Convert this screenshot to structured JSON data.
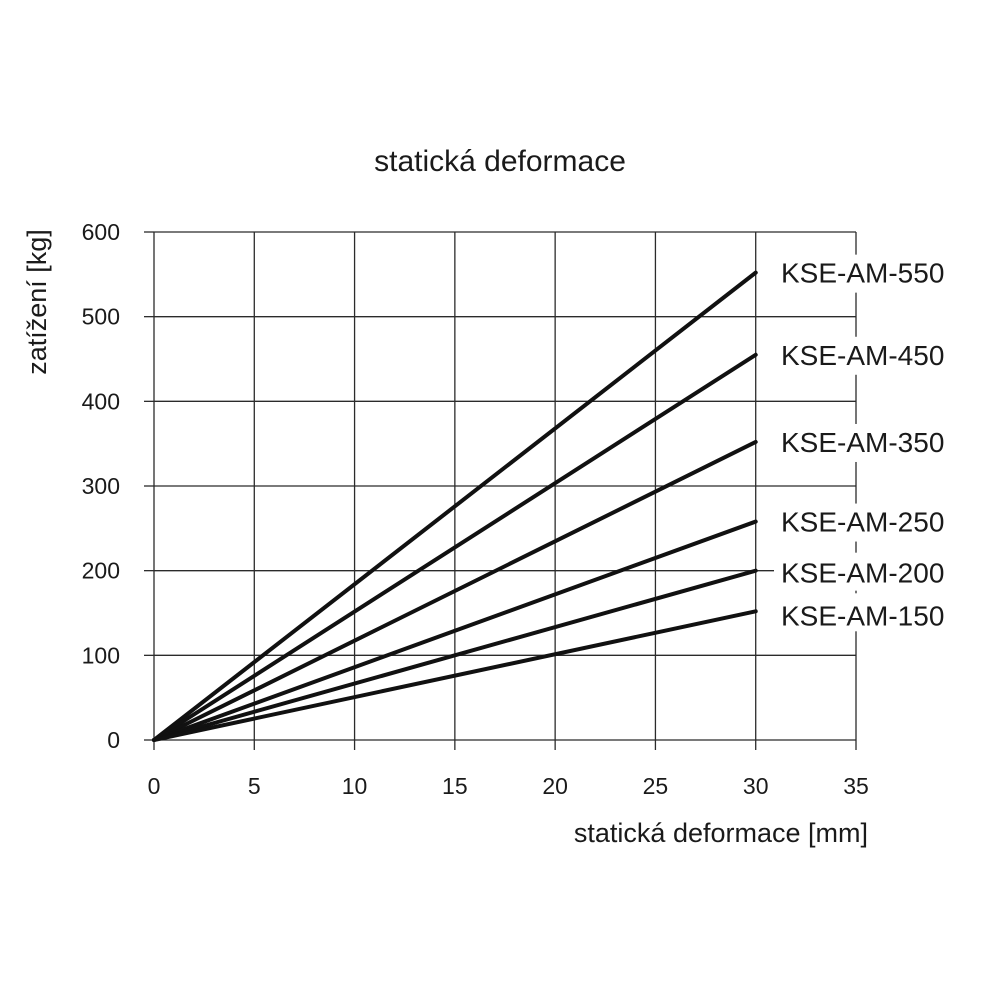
{
  "chart_data": {
    "type": "line",
    "title": "statická deformace",
    "xlabel": "statická deformace [mm]",
    "ylabel": "zatížení [kg]",
    "xlim": [
      0,
      35
    ],
    "ylim": [
      0,
      600
    ],
    "x_ticks": [
      "0",
      "5",
      "10",
      "15",
      "20",
      "25",
      "30",
      "35"
    ],
    "y_ticks": [
      "0",
      "100",
      "200",
      "300",
      "400",
      "500",
      "600"
    ],
    "grid": true,
    "legend": "labels at line ends, right",
    "series": [
      {
        "name": "KSE-AM-550",
        "x": [
          0,
          30
        ],
        "y": [
          0,
          552
        ]
      },
      {
        "name": "KSE-AM-450",
        "x": [
          0,
          30
        ],
        "y": [
          0,
          455
        ]
      },
      {
        "name": "KSE-AM-350",
        "x": [
          0,
          30
        ],
        "y": [
          0,
          352
        ]
      },
      {
        "name": "KSE-AM-250",
        "x": [
          0,
          30
        ],
        "y": [
          0,
          258
        ]
      },
      {
        "name": "KSE-AM-200",
        "x": [
          0,
          30
        ],
        "y": [
          0,
          200
        ]
      },
      {
        "name": "KSE-AM-150",
        "x": [
          0,
          30
        ],
        "y": [
          0,
          152
        ]
      }
    ]
  }
}
